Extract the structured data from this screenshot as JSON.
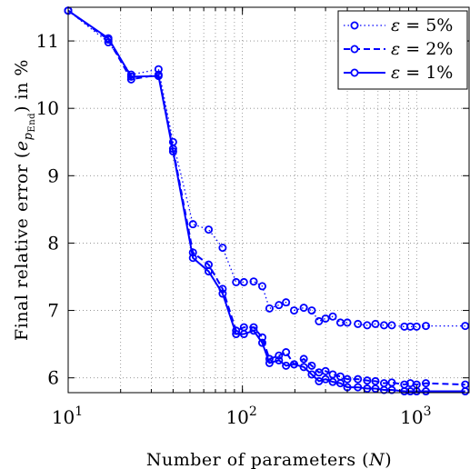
{
  "chart_data": {
    "type": "line",
    "title": "",
    "xlabel": "Number of parameters (N)",
    "ylabel": "Final relative error (e_{p_End}) in %",
    "xscale": "log",
    "xlim": [
      10,
      2000
    ],
    "ylim": [
      5.78,
      11.5
    ],
    "xticks": [
      {
        "value": 10,
        "label": "10",
        "exp": "1"
      },
      {
        "value": 100,
        "label": "10",
        "exp": "2"
      },
      {
        "value": 1000,
        "label": "10",
        "exp": "3"
      }
    ],
    "yticks": [
      6,
      7,
      8,
      9,
      10,
      11
    ],
    "grid": true,
    "legend_position": "top-right",
    "series": [
      {
        "name": "ε = 5%",
        "style": "dotted",
        "color": "#0000ff",
        "points": [
          [
            10,
            11.45
          ],
          [
            17,
            10.98
          ],
          [
            23,
            10.5
          ],
          [
            33,
            10.58
          ],
          [
            40,
            9.5
          ],
          [
            52,
            8.28
          ],
          [
            64,
            8.2
          ],
          [
            77,
            7.93
          ],
          [
            92,
            7.42
          ],
          [
            102,
            7.42
          ],
          [
            116,
            7.43
          ],
          [
            130,
            7.36
          ],
          [
            143,
            7.03
          ],
          [
            162,
            7.08
          ],
          [
            178,
            7.12
          ],
          [
            198,
            7.0
          ],
          [
            225,
            7.04
          ],
          [
            250,
            7.0
          ],
          [
            275,
            6.84
          ],
          [
            300,
            6.88
          ],
          [
            330,
            6.91
          ],
          [
            365,
            6.82
          ],
          [
            400,
            6.82
          ],
          [
            460,
            6.8
          ],
          [
            520,
            6.78
          ],
          [
            580,
            6.8
          ],
          [
            650,
            6.78
          ],
          [
            720,
            6.78
          ],
          [
            850,
            6.76
          ],
          [
            920,
            6.76
          ],
          [
            1000,
            6.76
          ],
          [
            1130,
            6.77
          ],
          [
            1900,
            6.77
          ]
        ]
      },
      {
        "name": "ε = 2%",
        "style": "dashed",
        "color": "#0000ff",
        "points": [
          [
            10,
            11.45
          ],
          [
            17,
            11.02
          ],
          [
            23,
            10.43
          ],
          [
            33,
            10.5
          ],
          [
            40,
            9.4
          ],
          [
            52,
            7.86
          ],
          [
            64,
            7.68
          ],
          [
            77,
            7.32
          ],
          [
            92,
            6.7
          ],
          [
            102,
            6.75
          ],
          [
            116,
            6.75
          ],
          [
            130,
            6.6
          ],
          [
            143,
            6.28
          ],
          [
            162,
            6.33
          ],
          [
            178,
            6.38
          ],
          [
            198,
            6.2
          ],
          [
            225,
            6.28
          ],
          [
            250,
            6.18
          ],
          [
            275,
            6.08
          ],
          [
            300,
            6.1
          ],
          [
            330,
            6.05
          ],
          [
            365,
            6.02
          ],
          [
            400,
            5.98
          ],
          [
            460,
            5.98
          ],
          [
            520,
            5.96
          ],
          [
            580,
            5.95
          ],
          [
            650,
            5.92
          ],
          [
            720,
            5.93
          ],
          [
            850,
            5.9
          ],
          [
            920,
            5.92
          ],
          [
            1000,
            5.9
          ],
          [
            1130,
            5.92
          ],
          [
            1900,
            5.9
          ]
        ]
      },
      {
        "name": "ε = 1%",
        "style": "solid",
        "color": "#0000ff",
        "points": [
          [
            10,
            11.45
          ],
          [
            17,
            11.04
          ],
          [
            23,
            10.47
          ],
          [
            33,
            10.48
          ],
          [
            40,
            9.36
          ],
          [
            52,
            7.78
          ],
          [
            64,
            7.58
          ],
          [
            77,
            7.25
          ],
          [
            92,
            6.65
          ],
          [
            102,
            6.65
          ],
          [
            116,
            6.7
          ],
          [
            130,
            6.52
          ],
          [
            143,
            6.22
          ],
          [
            162,
            6.26
          ],
          [
            178,
            6.18
          ],
          [
            198,
            6.2
          ],
          [
            225,
            6.16
          ],
          [
            250,
            6.05
          ],
          [
            275,
            5.95
          ],
          [
            300,
            5.98
          ],
          [
            330,
            5.94
          ],
          [
            365,
            5.92
          ],
          [
            400,
            5.86
          ],
          [
            460,
            5.86
          ],
          [
            520,
            5.84
          ],
          [
            580,
            5.84
          ],
          [
            650,
            5.82
          ],
          [
            720,
            5.82
          ],
          [
            850,
            5.8
          ],
          [
            920,
            5.8
          ],
          [
            1000,
            5.8
          ],
          [
            1130,
            5.8
          ],
          [
            1900,
            5.8
          ]
        ]
      }
    ]
  }
}
